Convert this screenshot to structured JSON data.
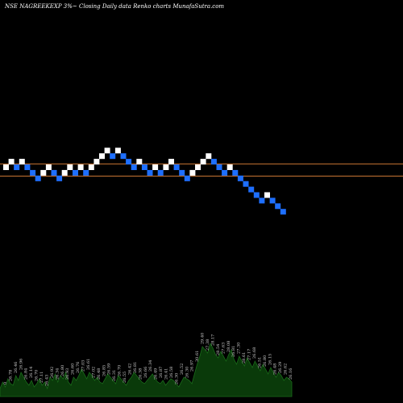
{
  "chart_data": {
    "type": "renko",
    "title": "NSE NAGREEKEXP 3%~  Closing Daily data  Renko  charts MunafaSutra.com",
    "colors": {
      "up_brick": "#ffffff",
      "down_brick": "#1e6fff",
      "support_line": "#c87533",
      "volume_fill": "#0a3a0a",
      "volume_stroke": "#1a6a1a",
      "background": "#000000"
    },
    "bricks": [
      {
        "dir": "up",
        "level": 0
      },
      {
        "dir": "up",
        "level": 1
      },
      {
        "dir": "down",
        "level": 0
      },
      {
        "dir": "up",
        "level": 1
      },
      {
        "dir": "down",
        "level": 0
      },
      {
        "dir": "down",
        "level": -1
      },
      {
        "dir": "down",
        "level": -2
      },
      {
        "dir": "up",
        "level": -1
      },
      {
        "dir": "up",
        "level": 0
      },
      {
        "dir": "down",
        "level": -1
      },
      {
        "dir": "down",
        "level": -2
      },
      {
        "dir": "up",
        "level": -1
      },
      {
        "dir": "up",
        "level": 0
      },
      {
        "dir": "down",
        "level": -1
      },
      {
        "dir": "up",
        "level": 0
      },
      {
        "dir": "down",
        "level": -1
      },
      {
        "dir": "up",
        "level": 0
      },
      {
        "dir": "up",
        "level": 1
      },
      {
        "dir": "up",
        "level": 2
      },
      {
        "dir": "up",
        "level": 3
      },
      {
        "dir": "down",
        "level": 2
      },
      {
        "dir": "up",
        "level": 3
      },
      {
        "dir": "down",
        "level": 2
      },
      {
        "dir": "down",
        "level": 1
      },
      {
        "dir": "down",
        "level": 0
      },
      {
        "dir": "up",
        "level": 1
      },
      {
        "dir": "down",
        "level": 0
      },
      {
        "dir": "down",
        "level": -1
      },
      {
        "dir": "up",
        "level": 0
      },
      {
        "dir": "down",
        "level": -1
      },
      {
        "dir": "up",
        "level": 0
      },
      {
        "dir": "up",
        "level": 1
      },
      {
        "dir": "down",
        "level": 0
      },
      {
        "dir": "down",
        "level": -1
      },
      {
        "dir": "down",
        "level": -2
      },
      {
        "dir": "up",
        "level": -1
      },
      {
        "dir": "up",
        "level": 0
      },
      {
        "dir": "up",
        "level": 1
      },
      {
        "dir": "up",
        "level": 2
      },
      {
        "dir": "down",
        "level": 1
      },
      {
        "dir": "down",
        "level": 0
      },
      {
        "dir": "down",
        "level": -1
      },
      {
        "dir": "up",
        "level": 0
      },
      {
        "dir": "down",
        "level": -1
      },
      {
        "dir": "down",
        "level": -2
      },
      {
        "dir": "down",
        "level": -3
      },
      {
        "dir": "down",
        "level": -4
      },
      {
        "dir": "down",
        "level": -5
      },
      {
        "dir": "down",
        "level": -6
      },
      {
        "dir": "up",
        "level": -5
      },
      {
        "dir": "down",
        "level": -6
      },
      {
        "dir": "down",
        "level": -7
      },
      {
        "dir": "down",
        "level": -8
      }
    ],
    "support_lines": [
      {
        "level": 0.6
      },
      {
        "level": -1.6
      }
    ],
    "volume": {
      "heights": [
        10,
        18,
        12,
        22,
        16,
        14,
        26,
        20,
        30,
        24,
        18,
        14,
        20,
        12,
        16,
        22,
        14,
        18,
        10,
        24,
        20,
        28,
        18,
        26,
        22,
        30,
        18,
        14,
        24,
        20,
        26,
        34,
        28,
        22,
        30,
        26,
        20,
        24,
        18,
        16,
        22,
        28,
        24,
        20,
        16,
        26,
        22,
        18,
        14,
        20,
        24,
        30,
        26,
        22,
        18,
        16,
        20,
        24,
        28,
        22,
        18,
        16,
        20,
        14,
        18,
        22,
        20,
        16,
        12,
        18,
        24,
        22,
        20,
        16,
        28,
        40,
        50,
        62,
        58,
        54,
        66,
        60,
        52,
        48,
        56,
        50,
        44,
        52,
        58,
        46,
        40,
        50,
        44,
        38,
        48,
        42,
        36,
        44,
        38,
        32,
        40,
        34,
        28,
        36,
        30,
        24,
        30,
        26,
        20,
        24,
        22,
        18
      ],
      "labels": [
        "0",
        "26.78",
        "26.46",
        "26.96",
        "26.84",
        "26.14",
        "26.70",
        "27.11",
        "26.43",
        "26.92",
        "26.34",
        "26.80",
        "26.93",
        "26.60",
        "26.76",
        "27.03",
        "26.61",
        "27.02",
        "26.48",
        "26.85",
        "26.59",
        "26.31",
        "26.70",
        "26.55",
        "26.42",
        "26.81",
        "26.38",
        "26.66",
        "26.34",
        "26.49",
        "26.87",
        "26.41",
        "26.58",
        "26.30",
        "26.52",
        "26.30",
        "26.97",
        "30.61",
        "29.40",
        "27.38",
        "28.17",
        "28.54",
        "27.63",
        "28.08",
        "26.81",
        "27.30",
        "28.61",
        "27.17",
        "26.68",
        "26.51",
        "26.80",
        "26.15",
        "26.48",
        "26.29",
        "26.62",
        "26.16"
      ]
    }
  }
}
